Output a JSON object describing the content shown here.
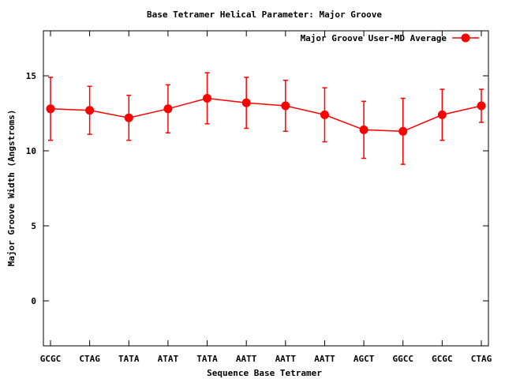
{
  "chart_data": {
    "type": "line",
    "title": "Base Tetramer Helical Parameter: Major Groove",
    "xlabel": "Sequence Base Tetramer",
    "ylabel": "Major Groove Width (Angstroms)",
    "categories": [
      "GCGC",
      "CTAG",
      "TATA",
      "ATAT",
      "TATA",
      "AATT",
      "AATT",
      "AATT",
      "AGCT",
      "GGCC",
      "GCGC",
      "CTAG"
    ],
    "ylim": [
      -3,
      18
    ],
    "yticks": [
      0,
      5,
      10,
      15
    ],
    "grid": false,
    "legend_position": "top-right",
    "series": [
      {
        "name": "Major Groove User-MD Average",
        "color": "#ff0000",
        "values": [
          12.8,
          12.7,
          12.2,
          12.8,
          13.5,
          13.2,
          13.0,
          12.4,
          11.4,
          11.3,
          12.4,
          13.0
        ],
        "error_low": [
          10.7,
          11.1,
          10.7,
          11.2,
          11.8,
          11.5,
          11.3,
          10.6,
          9.5,
          9.1,
          10.7,
          11.9
        ],
        "error_high": [
          14.9,
          14.3,
          13.7,
          14.4,
          15.2,
          14.9,
          14.7,
          14.2,
          13.3,
          13.5,
          14.1,
          14.1
        ]
      }
    ]
  }
}
